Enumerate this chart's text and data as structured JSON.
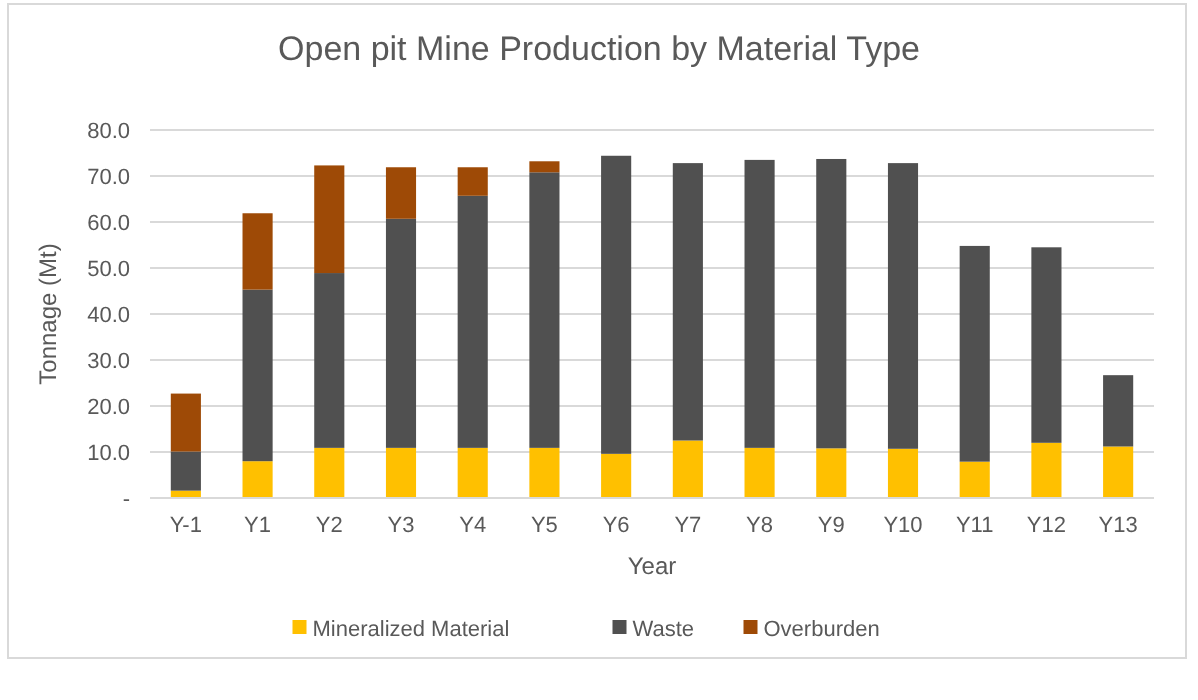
{
  "chart_data": {
    "type": "bar",
    "title": "Open pit Mine Production by Material Type",
    "xlabel": "Year",
    "ylabel": "Tonnage (Mt)",
    "categories": [
      "Y-1",
      "Y1",
      "Y2",
      "Y3",
      "Y4",
      "Y5",
      "Y6",
      "Y7",
      "Y8",
      "Y9",
      "Y10",
      "Y11",
      "Y12",
      "Y13"
    ],
    "series": [
      {
        "name": "Mineralized Material",
        "color": "#ffc000",
        "values": [
          1.6,
          8.0,
          10.9,
          10.9,
          10.9,
          10.9,
          9.6,
          12.5,
          10.9,
          10.8,
          10.7,
          7.9,
          12.0,
          11.2
        ]
      },
      {
        "name": "Waste",
        "color": "#505050",
        "values": [
          8.5,
          37.3,
          38.0,
          49.8,
          54.8,
          59.9,
          64.8,
          60.3,
          62.6,
          62.9,
          62.1,
          46.9,
          42.5,
          15.5
        ]
      },
      {
        "name": "Overburden",
        "color": "#9e4a06",
        "values": [
          12.6,
          16.6,
          23.4,
          11.2,
          6.2,
          2.4,
          0,
          0,
          0,
          0,
          0,
          0,
          0,
          0
        ]
      }
    ],
    "stacked": true,
    "ylim": [
      0,
      80
    ],
    "yticks": [
      {
        "value": 0,
        "label": "-"
      },
      {
        "value": 10,
        "label": "10.0"
      },
      {
        "value": 20,
        "label": "20.0"
      },
      {
        "value": 30,
        "label": "30.0"
      },
      {
        "value": 40,
        "label": "40.0"
      },
      {
        "value": 50,
        "label": "50.0"
      },
      {
        "value": 60,
        "label": "60.0"
      },
      {
        "value": 70,
        "label": "70.0"
      },
      {
        "value": 80,
        "label": "80.0"
      }
    ],
    "grid": "y",
    "legend": "bottom"
  }
}
